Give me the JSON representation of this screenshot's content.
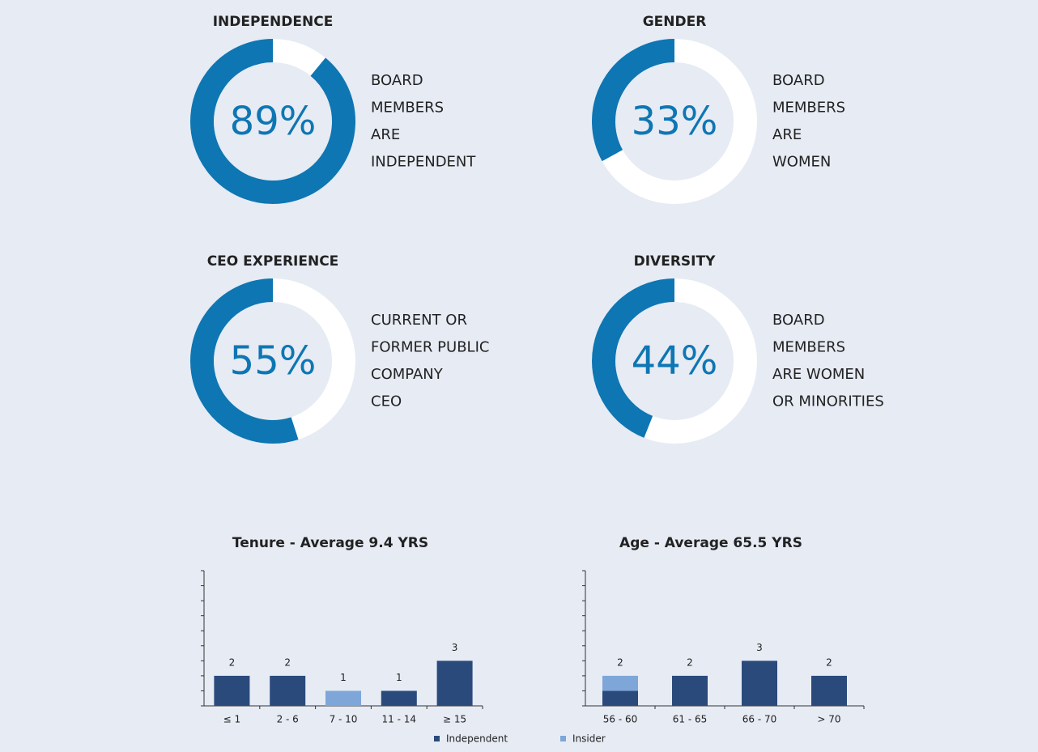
{
  "chart_data": [
    {
      "type": "donut",
      "title": "INDEPENDENCE",
      "values": [
        89
      ],
      "value_labels": [
        "89%"
      ],
      "color": "#0e76b3",
      "caption": [
        "BOARD",
        "MEMBERS",
        "ARE",
        "INDEPENDENT"
      ]
    },
    {
      "type": "donut",
      "title": "GENDER",
      "values": [
        33
      ],
      "value_labels": [
        "33%"
      ],
      "color": "#0e76b3",
      "caption": [
        "BOARD",
        "MEMBERS",
        "ARE",
        "WOMEN"
      ]
    },
    {
      "type": "donut",
      "title": "CEO EXPERIENCE",
      "values": [
        55
      ],
      "value_labels": [
        "55%"
      ],
      "color": "#0e76b3",
      "caption": [
        "CURRENT OR",
        "FORMER PUBLIC",
        "COMPANY",
        "CEO"
      ]
    },
    {
      "type": "donut",
      "title": "DIVERSITY",
      "values": [
        44
      ],
      "value_labels": [
        "44%"
      ],
      "color": "#0e76b3",
      "caption": [
        "BOARD",
        "MEMBERS",
        "ARE WOMEN",
        "OR MINORITIES"
      ]
    },
    {
      "type": "stacked_bar",
      "title": "Tenure - Average 9.4 YRS",
      "categories": [
        "≤ 1",
        "2 - 6",
        "7 - 10",
        "11 - 14",
        "≥ 15"
      ],
      "series": [
        {
          "name": "Independent",
          "color": "#2b4a7c",
          "values": [
            2,
            2,
            0,
            1,
            3
          ]
        },
        {
          "name": "Insider",
          "color": "#7ea6d8",
          "values": [
            0,
            0,
            1,
            0,
            0
          ]
        }
      ],
      "value_labels": [
        "2",
        "2",
        "1",
        "1",
        "3"
      ],
      "ylim": [
        0,
        9
      ],
      "yticks": [
        0,
        1,
        2,
        3,
        4,
        5,
        6,
        7,
        8,
        9
      ],
      "legend": "none"
    },
    {
      "type": "stacked_bar",
      "title": "Age - Average 65.5 YRS",
      "categories": [
        "56 - 60",
        "61 - 65",
        "66 - 70",
        "> 70"
      ],
      "series": [
        {
          "name": "Independent",
          "color": "#2b4a7c",
          "values": [
            1,
            2,
            3,
            2
          ]
        },
        {
          "name": "Insider",
          "color": "#7ea6d8",
          "values": [
            1,
            0,
            0,
            0
          ]
        }
      ],
      "value_labels": [
        "2",
        "2",
        "3",
        "2"
      ],
      "ylim": [
        0,
        9
      ],
      "yticks": [
        0,
        1,
        2,
        3,
        4,
        5,
        6,
        7,
        8,
        9
      ],
      "legend": "bottom"
    }
  ]
}
